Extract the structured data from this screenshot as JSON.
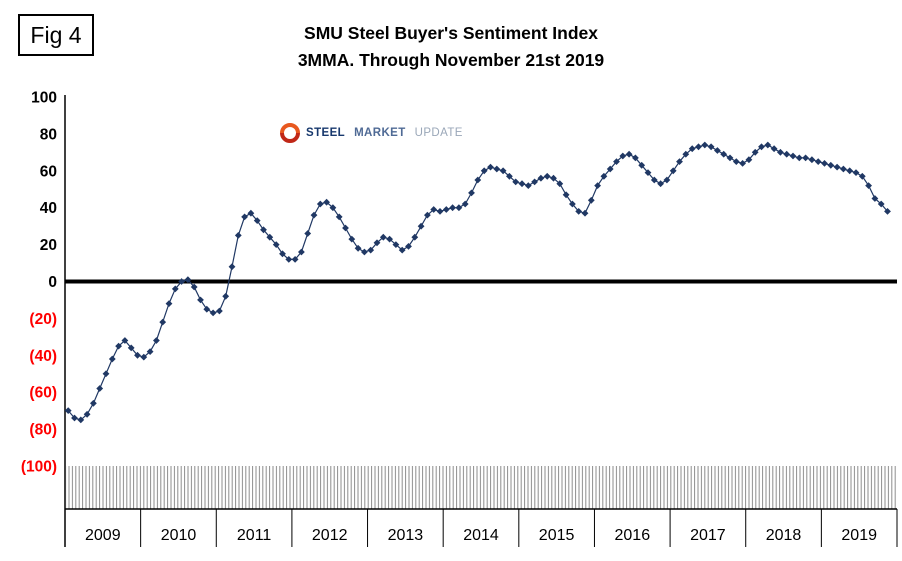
{
  "fig_label": "Fig 4",
  "title": {
    "line1": "SMU Steel Buyer's Sentiment Index",
    "line2": "3MMA. Through November 21st 2019"
  },
  "logo": {
    "word1": "STEEL",
    "word2": "MARKET",
    "word3": "UPDATE"
  },
  "colors": {
    "marker": "#203864",
    "positive_label": "#000000",
    "negative_label": "#ff0000",
    "axis": "#000000",
    "hatch_line": "#8c8c8c",
    "logo_ring_top": "#e8581f",
    "logo_ring_bottom": "#c02717",
    "logo_word1": "#17386d",
    "logo_word2": "#4f6a95",
    "logo_word3": "#9aa7b8"
  },
  "chart_data": {
    "type": "scatter",
    "title": "SMU Steel Buyer's Sentiment Index",
    "subtitle": "3MMA. Through November 21st 2019",
    "series_name": "Steel Buyer's Sentiment 3MMA",
    "marker": "diamond",
    "start": "2009-01",
    "end": "2019-11",
    "x_tick_labels": [
      "2009",
      "2010",
      "2011",
      "2012",
      "2013",
      "2014",
      "2015",
      "2016",
      "2017",
      "2018",
      "2019"
    ],
    "y_ticks": [
      100,
      80,
      60,
      40,
      20,
      0,
      -20,
      -40,
      -60,
      -80,
      -100
    ],
    "ylim": [
      -100,
      100
    ],
    "grid": "none",
    "zero_line": true,
    "negative_labels_in_red_parentheses": true,
    "points": [
      -70,
      -74,
      -75,
      -72,
      -66,
      -58,
      -50,
      -42,
      -35,
      -32,
      -36,
      -40,
      -41,
      -38,
      -32,
      -22,
      -12,
      -4,
      0,
      1,
      -3,
      -10,
      -15,
      -17,
      -16,
      -8,
      8,
      25,
      35,
      37,
      33,
      28,
      24,
      20,
      15,
      12,
      12,
      16,
      26,
      36,
      42,
      43,
      40,
      35,
      29,
      23,
      18,
      16,
      17,
      21,
      24,
      23,
      20,
      17,
      19,
      24,
      30,
      36,
      39,
      38,
      39,
      40,
      40,
      42,
      48,
      55,
      60,
      62,
      61,
      60,
      57,
      54,
      53,
      52,
      54,
      56,
      57,
      56,
      53,
      47,
      42,
      38,
      37,
      44,
      52,
      57,
      61,
      65,
      68,
      69,
      67,
      63,
      59,
      55,
      53,
      55,
      60,
      65,
      69,
      72,
      73,
      74,
      73,
      71,
      69,
      67,
      65,
      64,
      66,
      70,
      73,
      74,
      72,
      70,
      69,
      68,
      67,
      67,
      66,
      65,
      64,
      63,
      62,
      61,
      60,
      59,
      57,
      52,
      45,
      42,
      38
    ]
  }
}
